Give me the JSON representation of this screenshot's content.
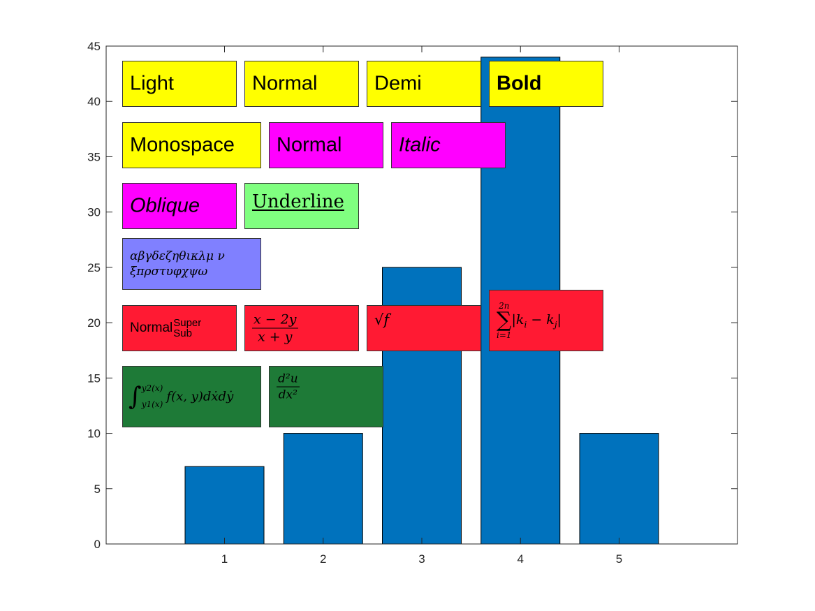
{
  "chart_data": {
    "type": "bar",
    "categories": [
      "1",
      "2",
      "3",
      "4",
      "5"
    ],
    "values": [
      7,
      10,
      25,
      44,
      10
    ],
    "xlim": [
      -0.2,
      6.2
    ],
    "ylim": [
      0,
      45
    ],
    "xticks": [
      "1",
      "2",
      "3",
      "4",
      "5"
    ],
    "yticks": [
      "0",
      "5",
      "10",
      "15",
      "20",
      "25",
      "30",
      "35",
      "40",
      "45"
    ],
    "bar_color": "#0072BD",
    "grid": false,
    "legend": "none",
    "title": "",
    "xlabel": "",
    "ylabel": ""
  },
  "annotations": [
    {
      "id": "light",
      "text": "Light",
      "bg": "#FFFF00"
    },
    {
      "id": "normal1",
      "text": "Normal",
      "bg": "#FFFF00"
    },
    {
      "id": "demi",
      "text": "Demi",
      "bg": "#FFFF00"
    },
    {
      "id": "bold",
      "text": "Bold",
      "bg": "#FFFF00"
    },
    {
      "id": "monospace",
      "text": "Monospace",
      "bg": "#FFFF00"
    },
    {
      "id": "normal2",
      "text": "Normal",
      "bg": "#FF00FF"
    },
    {
      "id": "italic",
      "text": "Italic",
      "bg": "#FF00FF"
    },
    {
      "id": "oblique",
      "text": "Oblique",
      "bg": "#FF00FF"
    },
    {
      "id": "underline",
      "text": "Underline",
      "bg": "#80FF80"
    },
    {
      "id": "greek",
      "line1": "αβγδεζηθικλμ ν",
      "line2": "ξπρστυφχψω",
      "bg": "#8080FF"
    },
    {
      "id": "supsub",
      "base": "Normal",
      "sup": "Super",
      "sub": "Sub",
      "bg": "#FF1A33"
    },
    {
      "id": "frac1",
      "num": "x − 2y",
      "den": "x + y",
      "bg": "#FF1A33"
    },
    {
      "id": "sqrt",
      "text": "√f",
      "bg": "#FF1A33"
    },
    {
      "id": "sum",
      "upper": "2n",
      "expr": "|k",
      "sub_i": "i",
      "minus": " − k",
      "sub_j": "j",
      "end": "|",
      "lower": "i=1",
      "bg": "#FF1A33"
    },
    {
      "id": "integral",
      "upper": "y2(x)",
      "lower": "y1(x)",
      "expr": "f(x, y)dẋdẏ",
      "bg": "#1E7A37"
    },
    {
      "id": "frac2",
      "num": "d²u",
      "den": "dx²",
      "bg": "#1E7A37"
    }
  ]
}
